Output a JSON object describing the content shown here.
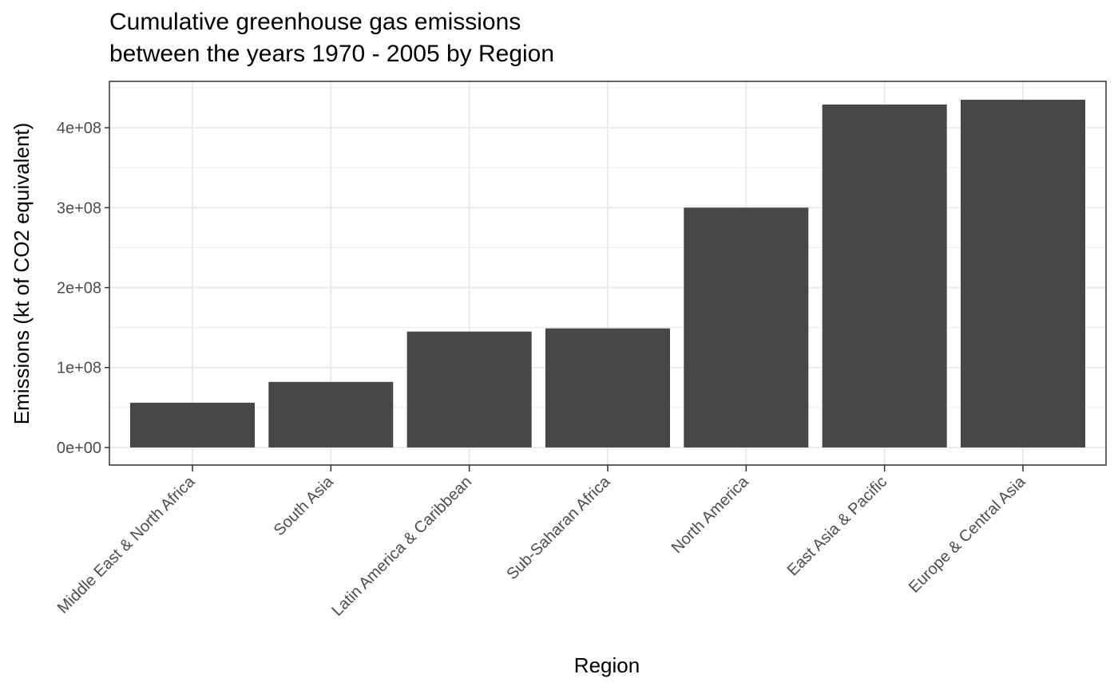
{
  "chart_data": {
    "type": "bar",
    "title_line1": "Cumulative greenhouse gas emissions",
    "title_line2": "between the years 1970 - 2005 by Region",
    "xlabel": "Region",
    "ylabel": "Emissions (kt of CO2 equivalent)",
    "categories": [
      "Middle East & North Africa",
      "South Asia",
      "Latin America & Caribbean",
      "Sub-Saharan Africa",
      "North America",
      "East Asia & Pacific",
      "Europe & Central Asia"
    ],
    "values": [
      56000000,
      82000000,
      145000000,
      149000000,
      300000000,
      429000000,
      435000000
    ],
    "ylim": [
      -22000000,
      458000000
    ],
    "yticks": [
      0,
      100000000,
      200000000,
      300000000,
      400000000
    ],
    "ytick_labels": [
      "0e+00",
      "1e+08",
      "2e+08",
      "3e+08",
      "4e+08"
    ],
    "grid": true,
    "bar_color": "#474747"
  }
}
